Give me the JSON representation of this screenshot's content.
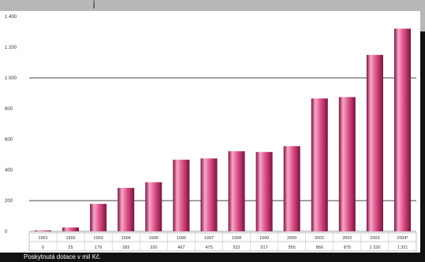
{
  "header": {
    "title_fragment": "j"
  },
  "footer": {
    "label": "Poskytnutá dotace v mil Kč."
  },
  "colors": {
    "bar": "#e0548a",
    "bar_dark": "#7a1240",
    "bar_light": "#f7a8c8",
    "background": "#b7b7b7",
    "plot_background": "#ffffff",
    "gridline": "#444444"
  },
  "chart_data": {
    "type": "bar",
    "categories": [
      "1991",
      "1992",
      "1993",
      "1994",
      "1995",
      "1996",
      "1997",
      "1998",
      "1999",
      "2000",
      "2001",
      "2002",
      "2003",
      "2004*"
    ],
    "values": [
      6,
      25,
      179,
      283,
      320,
      467,
      475,
      522,
      517,
      555,
      866,
      875,
      1150,
      1321
    ],
    "value_labels": [
      "6",
      "25",
      "179",
      "283",
      "320",
      "467",
      "475",
      "522",
      "517",
      "555",
      "866",
      "875",
      "1 150",
      "1 321"
    ],
    "yticks": [
      0,
      200,
      400,
      600,
      800,
      1000,
      1200,
      1400
    ],
    "ytick_labels": [
      "0",
      "200",
      "400",
      "600",
      "800",
      "1 000",
      "1 200",
      "1 400"
    ],
    "ylim": [
      0,
      1400
    ],
    "gridlines_at": [
      200,
      1000
    ],
    "xlabel": "",
    "ylabel": "",
    "title": "",
    "legend": "none",
    "data_table": true
  }
}
